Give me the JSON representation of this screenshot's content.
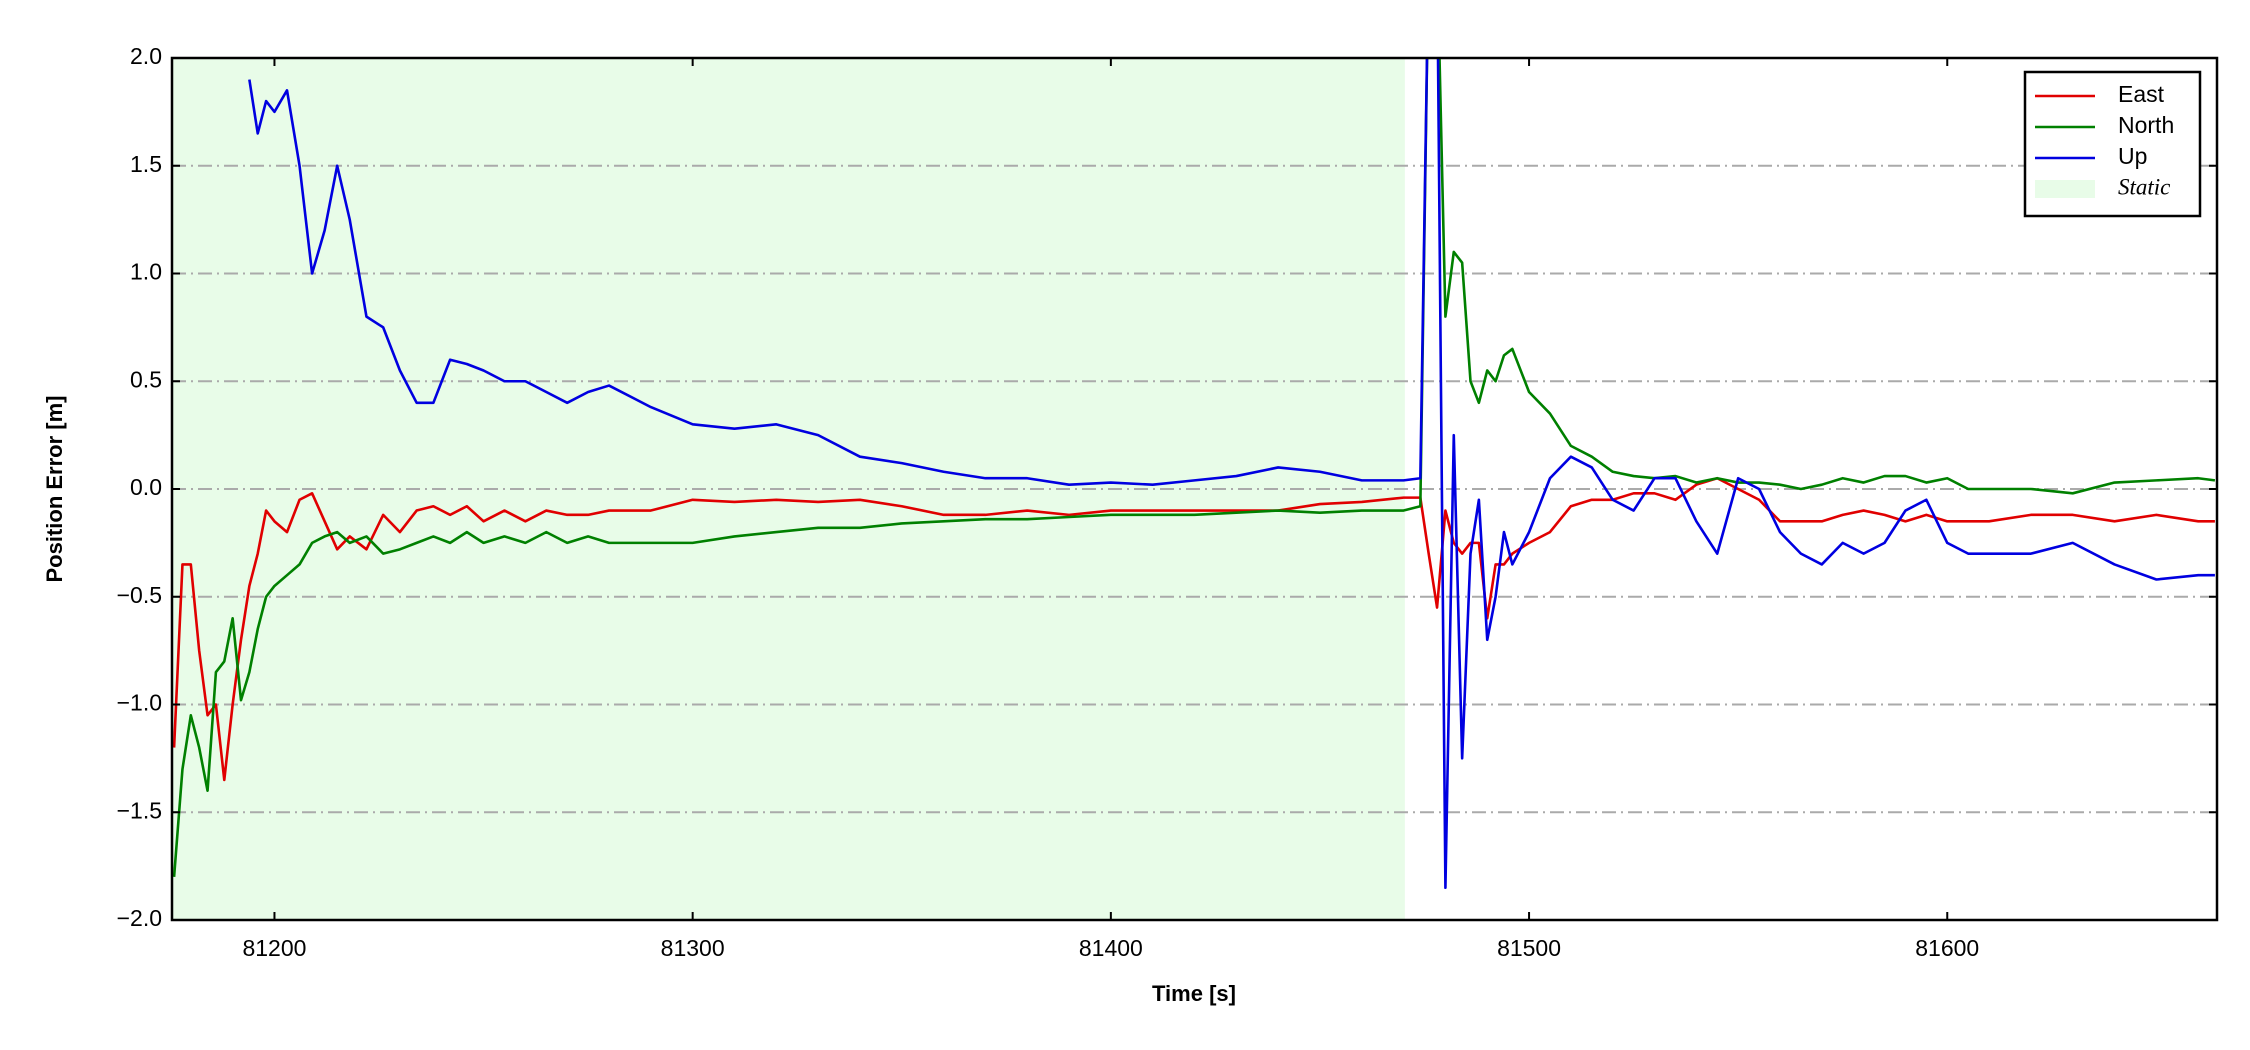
{
  "chart_data": {
    "type": "line",
    "xlabel": "Time [s]",
    "ylabel": "Position Error [m]",
    "xlim": [
      81175.5,
      81664.5
    ],
    "ylim": [
      -2,
      2
    ],
    "xticks": [
      81200,
      81300,
      81400,
      81500,
      81600
    ],
    "yticks": [
      {
        "value": -2,
        "label": "−2.0"
      },
      {
        "value": -1.5,
        "label": "−1.5"
      },
      {
        "value": -1,
        "label": "−1.0"
      },
      {
        "value": -0.5,
        "label": "−0.5"
      },
      {
        "value": 0,
        "label": "0.0"
      },
      0.5,
      {
        "value": 1,
        "label": "1.0"
      },
      1.5,
      {
        "value": 2,
        "label": "2.0"
      }
    ],
    "grid": true,
    "legend": "upper right",
    "shaded_regions": [
      {
        "name": "Static",
        "x0": 81175.5,
        "x1": 81470.3,
        "color": "#e8fce8"
      }
    ],
    "x": [
      81176,
      81178,
      81180,
      81182,
      81184,
      81186,
      81188,
      81190,
      81192,
      81194,
      81196,
      81198,
      81200,
      81203,
      81206,
      81209,
      81212,
      81215,
      81218,
      81222,
      81226,
      81230,
      81234,
      81238,
      81242,
      81246,
      81250,
      81255,
      81260,
      81265,
      81270,
      81275,
      81280,
      81290,
      81300,
      81310,
      81320,
      81330,
      81340,
      81350,
      81360,
      81370,
      81380,
      81390,
      81400,
      81410,
      81420,
      81430,
      81440,
      81450,
      81460,
      81470,
      81474,
      81476,
      81478,
      81480,
      81482,
      81484,
      81486,
      81488,
      81490,
      81492,
      81494,
      81496,
      81500,
      81505,
      81510,
      81515,
      81520,
      81525,
      81530,
      81535,
      81540,
      81545,
      81550,
      81555,
      81560,
      81565,
      81570,
      81575,
      81580,
      81585,
      81590,
      81595,
      81600,
      81605,
      81610,
      81620,
      81630,
      81640,
      81650,
      81660,
      81664
    ],
    "series": [
      {
        "name": "East",
        "color": "#e00000",
        "values": [
          -1.2,
          -0.35,
          -0.35,
          -0.75,
          -1.05,
          -1.0,
          -1.35,
          -1.0,
          -0.7,
          -0.45,
          -0.3,
          -0.1,
          -0.15,
          -0.2,
          -0.05,
          -0.02,
          -0.15,
          -0.28,
          -0.22,
          -0.28,
          -0.12,
          -0.2,
          -0.1,
          -0.08,
          -0.12,
          -0.08,
          -0.15,
          -0.1,
          -0.15,
          -0.1,
          -0.12,
          -0.12,
          -0.1,
          -0.1,
          -0.05,
          -0.06,
          -0.05,
          -0.06,
          -0.05,
          -0.08,
          -0.12,
          -0.12,
          -0.1,
          -0.12,
          -0.1,
          -0.1,
          -0.1,
          -0.1,
          -0.1,
          -0.07,
          -0.06,
          -0.04,
          -0.04,
          -0.3,
          -0.55,
          -0.1,
          -0.25,
          -0.3,
          -0.25,
          -0.25,
          -0.6,
          -0.35,
          -0.35,
          -0.3,
          -0.25,
          -0.2,
          -0.08,
          -0.05,
          -0.05,
          -0.02,
          -0.02,
          -0.05,
          0.02,
          0.05,
          0.0,
          -0.05,
          -0.15,
          -0.15,
          -0.15,
          -0.12,
          -0.1,
          -0.12,
          -0.15,
          -0.12,
          -0.15,
          -0.15,
          -0.15,
          -0.12,
          -0.12,
          -0.15,
          -0.12,
          -0.15,
          -0.15
        ]
      },
      {
        "name": "North",
        "color": "#008000",
        "values": [
          -1.8,
          -1.3,
          -1.05,
          -1.2,
          -1.4,
          -0.85,
          -0.8,
          -0.6,
          -0.98,
          -0.85,
          -0.65,
          -0.5,
          -0.45,
          -0.4,
          -0.35,
          -0.25,
          -0.22,
          -0.2,
          -0.25,
          -0.22,
          -0.3,
          -0.28,
          -0.25,
          -0.22,
          -0.25,
          -0.2,
          -0.25,
          -0.22,
          -0.25,
          -0.2,
          -0.25,
          -0.22,
          -0.25,
          -0.25,
          -0.25,
          -0.22,
          -0.2,
          -0.18,
          -0.18,
          -0.16,
          -0.15,
          -0.14,
          -0.14,
          -0.13,
          -0.12,
          -0.12,
          -0.12,
          -0.11,
          -0.1,
          -0.11,
          -0.1,
          -0.1,
          -0.08,
          2.5,
          2.5,
          0.8,
          1.1,
          1.05,
          0.5,
          0.4,
          0.55,
          0.5,
          0.62,
          0.65,
          0.45,
          0.35,
          0.2,
          0.15,
          0.08,
          0.06,
          0.05,
          0.06,
          0.03,
          0.05,
          0.03,
          0.03,
          0.02,
          0.0,
          0.02,
          0.05,
          0.03,
          0.06,
          0.06,
          0.03,
          0.05,
          0.0,
          0.0,
          0.0,
          -0.02,
          0.03,
          0.04,
          0.05,
          0.04
        ]
      },
      {
        "name": "Up",
        "color": "#0000e0",
        "values": [
          null,
          null,
          null,
          null,
          null,
          null,
          null,
          null,
          null,
          1.9,
          1.65,
          1.8,
          1.75,
          1.85,
          1.5,
          1.0,
          1.2,
          1.5,
          1.25,
          0.8,
          0.75,
          0.55,
          0.4,
          0.4,
          0.6,
          0.58,
          0.55,
          0.5,
          0.5,
          0.45,
          0.4,
          0.45,
          0.48,
          0.38,
          0.3,
          0.28,
          0.3,
          0.25,
          0.15,
          0.12,
          0.08,
          0.05,
          0.05,
          0.02,
          0.03,
          0.02,
          0.04,
          0.06,
          0.1,
          0.08,
          0.04,
          0.04,
          0.05,
          2.5,
          2.5,
          -1.85,
          0.25,
          -1.25,
          -0.3,
          -0.05,
          -0.7,
          -0.5,
          -0.2,
          -0.35,
          -0.2,
          0.05,
          0.15,
          0.1,
          -0.05,
          -0.1,
          0.05,
          0.05,
          -0.15,
          -0.3,
          0.05,
          0.0,
          -0.2,
          -0.3,
          -0.35,
          -0.25,
          -0.3,
          -0.25,
          -0.1,
          -0.05,
          -0.25,
          -0.3,
          -0.3,
          -0.3,
          -0.25,
          -0.35,
          -0.42,
          -0.4,
          -0.4
        ]
      }
    ]
  }
}
